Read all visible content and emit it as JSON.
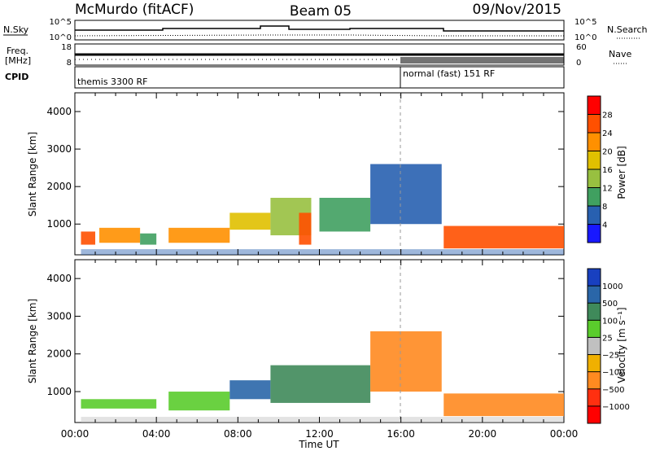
{
  "header": {
    "station": "McMurdo (fitACF)",
    "beam": "Beam 05",
    "date": "09/Nov/2015"
  },
  "top_panels": {
    "nsky_label": "N.Sky",
    "nsky_ticks": [
      "10^5",
      "10^0"
    ],
    "nsearch_label": "N.Search",
    "nsearch_ticks": [
      "10^5",
      "10^0"
    ],
    "freq_label_1": "Freq.",
    "freq_label_2": "[MHz]",
    "freq_ticks": [
      "18",
      "8"
    ],
    "nave_label": "Nave",
    "nave_ticks": [
      "60",
      "0"
    ],
    "cpid_label": "CPID",
    "cpid_segments": [
      "themis 3300 RF",
      "normal (fast) 151 RF"
    ]
  },
  "axes": {
    "xlabel": "Time UT",
    "ylabel": "Slant Range [km]",
    "x_ticks": [
      "00:00",
      "04:00",
      "08:00",
      "12:00",
      "16:00",
      "20:00",
      "00:00"
    ],
    "y_ticks": [
      "4000",
      "3000",
      "2000",
      "1000"
    ]
  },
  "colorbars": {
    "power": {
      "label": "Power [dB]",
      "ticks": [
        "28",
        "24",
        "20",
        "16",
        "12",
        "8",
        "4"
      ],
      "colors": [
        "#ff0000",
        "#ff5000",
        "#ff9000",
        "#e0c000",
        "#98c040",
        "#40a060",
        "#2860b0",
        "#1818ff"
      ]
    },
    "velocity": {
      "label": "Velocity [m s⁻¹]",
      "ticks": [
        "1000",
        "500",
        "100",
        "25",
        "−25",
        "−100",
        "−500",
        "−1000"
      ],
      "colors": [
        "#1840c0",
        "#2a66a8",
        "#3f8a5a",
        "#5acc2c",
        "#c0c0c0",
        "#f0b000",
        "#ff8a20",
        "#ff3010",
        "#ff0000"
      ]
    }
  },
  "chart_data": [
    {
      "type": "heatmap",
      "panel": "power",
      "xlabel": "Time UT",
      "ylabel": "Slant Range [km]",
      "xlim": [
        "00:00",
        "24:00"
      ],
      "ylim": [
        180,
        4500
      ],
      "colorbar": "Power [dB]",
      "regions": [
        {
          "t": [
            0.3,
            1.0
          ],
          "range": [
            450,
            800
          ],
          "power_db": 26
        },
        {
          "t": [
            1.2,
            3.2
          ],
          "range": [
            500,
            900
          ],
          "power_db": 22
        },
        {
          "t": [
            3.2,
            4.0
          ],
          "range": [
            450,
            750
          ],
          "power_db": 12
        },
        {
          "t": [
            4.6,
            7.6
          ],
          "range": [
            500,
            900
          ],
          "power_db": 24
        },
        {
          "t": [
            7.6,
            9.6
          ],
          "range": [
            850,
            1300
          ],
          "power_db": 20
        },
        {
          "t": [
            9.6,
            11.6
          ],
          "range": [
            700,
            1700
          ],
          "power_db": 14
        },
        {
          "t": [
            11.0,
            11.6
          ],
          "range": [
            450,
            1300
          ],
          "power_db": 28
        },
        {
          "t": [
            12.0,
            14.5
          ],
          "range": [
            800,
            1700
          ],
          "power_db": 10
        },
        {
          "t": [
            14.5,
            18.0
          ],
          "range": [
            1000,
            2600
          ],
          "power_db": 8
        },
        {
          "t": [
            18.1,
            24.0
          ],
          "range": [
            350,
            950
          ],
          "power_db": 28
        }
      ]
    },
    {
      "type": "heatmap",
      "panel": "velocity",
      "xlabel": "Time UT",
      "ylabel": "Slant Range [km]",
      "xlim": [
        "00:00",
        "24:00"
      ],
      "ylim": [
        180,
        4500
      ],
      "colorbar": "Velocity [m s⁻¹]",
      "regions": [
        {
          "t": [
            0.3,
            4.0
          ],
          "range": [
            550,
            800
          ],
          "velocity": 90
        },
        {
          "t": [
            4.6,
            7.6
          ],
          "range": [
            500,
            1000
          ],
          "velocity": 90
        },
        {
          "t": [
            7.6,
            9.6
          ],
          "range": [
            800,
            1300
          ],
          "velocity": 550
        },
        {
          "t": [
            9.6,
            14.5
          ],
          "range": [
            700,
            1700
          ],
          "velocity": 300
        },
        {
          "t": [
            14.5,
            18.0
          ],
          "range": [
            1000,
            2600
          ],
          "velocity": -200
        },
        {
          "t": [
            18.1,
            24.0
          ],
          "range": [
            350,
            950
          ],
          "velocity": -180
        }
      ]
    }
  ]
}
